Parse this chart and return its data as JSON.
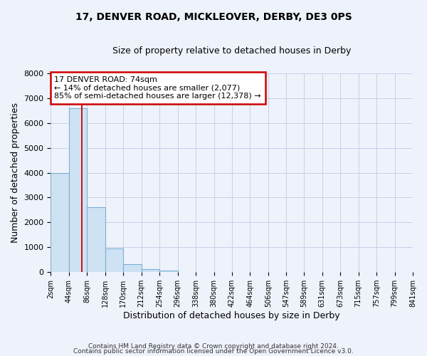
{
  "title": "17, DENVER ROAD, MICKLEOVER, DERBY, DE3 0PS",
  "subtitle": "Size of property relative to detached houses in Derby",
  "xlabel": "Distribution of detached houses by size in Derby",
  "ylabel": "Number of detached properties",
  "bin_edges": [
    2,
    44,
    86,
    128,
    170,
    212,
    254,
    296,
    338,
    380,
    422,
    464,
    506,
    547,
    589,
    631,
    673,
    715,
    757,
    799,
    841
  ],
  "bin_heights": [
    4000,
    6600,
    2600,
    950,
    330,
    110,
    70,
    0,
    0,
    0,
    0,
    0,
    0,
    0,
    0,
    0,
    0,
    0,
    0,
    0
  ],
  "bar_color": "#cfe2f3",
  "bar_edge_color": "#7ab0d4",
  "property_line_x": 74,
  "property_line_color": "#cc0000",
  "annotation_title": "17 DENVER ROAD: 74sqm",
  "annotation_line1": "← 14% of detached houses are smaller (2,077)",
  "annotation_line2": "85% of semi-detached houses are larger (12,378) →",
  "annotation_box_color": "#ffffff",
  "annotation_box_edge": "#cc0000",
  "ylim": [
    0,
    8000
  ],
  "yticks": [
    0,
    1000,
    2000,
    3000,
    4000,
    5000,
    6000,
    7000,
    8000
  ],
  "footer1": "Contains HM Land Registry data © Crown copyright and database right 2024.",
  "footer2": "Contains public sector information licensed under the Open Government Licence v3.0.",
  "bg_color": "#eef2fb",
  "grid_color": "#c8cfe8"
}
